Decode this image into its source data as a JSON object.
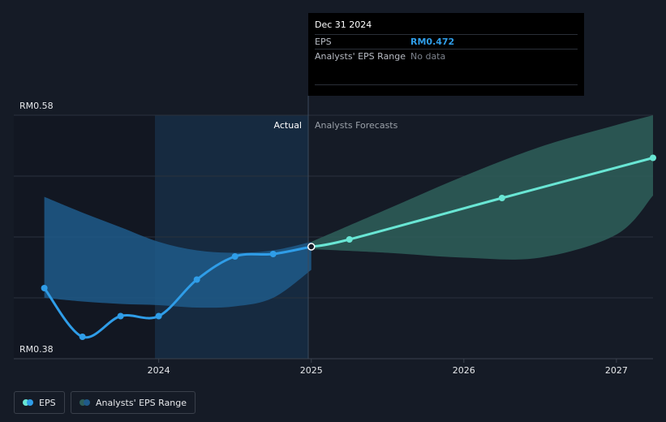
{
  "tooltip": {
    "date": "Dec 31 2024",
    "eps_label": "EPS",
    "eps_value": "RM0.472",
    "range_label": "Analysts' EPS Range",
    "range_value": "No data"
  },
  "legend": {
    "eps_label": "EPS",
    "range_label": "Analysts' EPS Range"
  },
  "colors": {
    "background": "#151b26",
    "eps_line": "#2f9de8",
    "forecast_line": "#69e6d4",
    "actual_band": "#1f5a8a",
    "forecast_band": "#2e5f5a"
  },
  "chart_data": {
    "type": "line",
    "y_top_label": "RM0.58",
    "y_bottom_label": "RM0.38",
    "ylim": [
      0.38,
      0.58
    ],
    "xlim": [
      2023.05,
      2027.24
    ],
    "x_ticks": [
      {
        "x": 2024.0,
        "label": "2024"
      },
      {
        "x": 2025.0,
        "label": "2025"
      },
      {
        "x": 2026.0,
        "label": "2026"
      },
      {
        "x": 2027.0,
        "label": "2027"
      }
    ],
    "divider_x": 2025.0,
    "past_shade_start": 2024.0,
    "actual_label": "Actual",
    "forecast_label": "Analysts Forecasts",
    "grid": true,
    "eps_actual": [
      {
        "x": 2023.25,
        "y": 0.438
      },
      {
        "x": 2023.5,
        "y": 0.398
      },
      {
        "x": 2023.75,
        "y": 0.415
      },
      {
        "x": 2024.0,
        "y": 0.415
      },
      {
        "x": 2024.25,
        "y": 0.445
      },
      {
        "x": 2024.5,
        "y": 0.464
      },
      {
        "x": 2024.75,
        "y": 0.466
      },
      {
        "x": 2025.0,
        "y": 0.472
      }
    ],
    "eps_forecast": [
      {
        "x": 2025.0,
        "y": 0.472
      },
      {
        "x": 2025.25,
        "y": 0.478
      },
      {
        "x": 2026.25,
        "y": 0.512
      },
      {
        "x": 2027.24,
        "y": 0.545
      }
    ],
    "actual_band": {
      "x": [
        2023.25,
        2023.5,
        2023.75,
        2024.0,
        2024.25,
        2024.5,
        2024.75,
        2025.0
      ],
      "upper": [
        0.513,
        0.5,
        0.488,
        0.476,
        0.469,
        0.467,
        0.469,
        0.476
      ],
      "lower": [
        0.43,
        0.427,
        0.425,
        0.424,
        0.422,
        0.423,
        0.43,
        0.453
      ]
    },
    "forecast_band": {
      "x": [
        2025.0,
        2025.5,
        2026.0,
        2026.5,
        2027.0,
        2027.24
      ],
      "upper": [
        0.476,
        0.503,
        0.53,
        0.554,
        0.572,
        0.58
      ],
      "lower": [
        0.47,
        0.467,
        0.463,
        0.463,
        0.482,
        0.514
      ]
    }
  }
}
